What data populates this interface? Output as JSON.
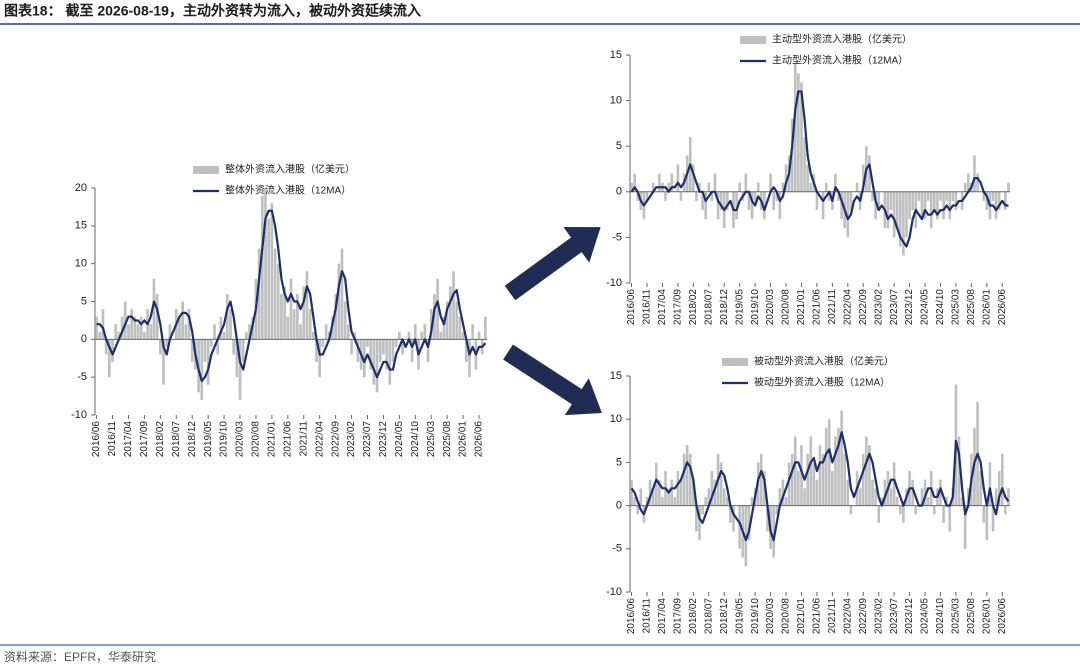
{
  "title": "图表18：  截至 2026-08-19，主动外资转为流入，被动外资延续流入",
  "source": "资料来源：EPFR，华泰研究",
  "chart_data": [
    {
      "type": "bar-line",
      "categories": [
        "2016/06",
        null,
        null,
        null,
        null,
        "2016/11",
        null,
        null,
        null,
        null,
        "2017/04",
        null,
        null,
        null,
        null,
        "2017/09",
        null,
        null,
        null,
        null,
        "2018/02",
        null,
        null,
        null,
        null,
        "2018/07",
        null,
        null,
        null,
        null,
        "2018/12",
        null,
        null,
        null,
        null,
        "2019/05",
        null,
        null,
        null,
        null,
        "2019/10",
        null,
        null,
        null,
        null,
        "2020/03",
        null,
        null,
        null,
        null,
        "2020/08",
        null,
        null,
        null,
        null,
        "2021/01",
        null,
        null,
        null,
        null,
        "2021/06",
        null,
        null,
        null,
        null,
        "2021/11",
        null,
        null,
        null,
        null,
        "2022/04",
        null,
        null,
        null,
        null,
        "2022/09",
        null,
        null,
        null,
        null,
        "2023/02",
        null,
        null,
        null,
        null,
        "2023/07",
        null,
        null,
        null,
        null,
        "2023/12",
        null,
        null,
        null,
        null,
        "2024/05",
        null,
        null,
        null,
        null,
        "2024/10",
        null,
        null,
        null,
        null,
        "2025/03",
        null,
        null,
        null,
        null,
        "2025/08",
        null,
        null,
        null,
        null,
        "2026/01",
        null,
        null,
        null,
        null,
        "2026/06",
        null,
        null
      ],
      "ylim": [
        -10,
        20
      ],
      "yticks": [
        -10,
        -5,
        0,
        5,
        10,
        15,
        20
      ],
      "series": [
        {
          "name": "整体外资流入港股（亿美元）",
          "type": "bar",
          "color": "#bfbfbf",
          "values": [
            3,
            1,
            4,
            -2,
            -5,
            -3,
            2,
            1,
            3,
            5,
            2,
            4,
            3,
            2,
            3,
            1,
            4,
            2,
            8,
            6,
            -2,
            -6,
            -1,
            2,
            0,
            4,
            3,
            5,
            2,
            4,
            -3,
            -4,
            -7,
            -8,
            -3,
            -6,
            -1,
            2,
            -2,
            3,
            1,
            6,
            4,
            -2,
            -5,
            -8,
            -3,
            1,
            2,
            3,
            8,
            12,
            19,
            20,
            16,
            18,
            12,
            10,
            6,
            7,
            3,
            8,
            4,
            6,
            2,
            7,
            9,
            4,
            1,
            -3,
            -5,
            -1,
            2,
            1,
            3,
            6,
            10,
            12,
            5,
            2,
            -2,
            1,
            -3,
            -4,
            -5,
            -1,
            -4,
            -6,
            -7,
            -3,
            -2,
            -4,
            -6,
            -3,
            -1,
            1,
            -2,
            0,
            1,
            -3,
            2,
            -4,
            1,
            2,
            -3,
            4,
            6,
            8,
            1,
            3,
            5,
            7,
            9,
            5,
            3,
            1,
            -3,
            -5,
            2,
            -4,
            1,
            -2,
            3
          ]
        },
        {
          "name": "整体外资流入港股（12MA）",
          "type": "line",
          "color": "#1f2d6b",
          "values": [
            2,
            2,
            1.5,
            0,
            -1,
            -2,
            -1,
            0,
            1,
            2,
            3,
            3,
            2.5,
            2.5,
            2,
            2.5,
            2,
            3,
            5,
            4,
            2,
            -1,
            -2,
            0,
            1,
            2,
            3,
            3.5,
            3.5,
            3,
            1,
            -2,
            -4,
            -5.5,
            -5,
            -4,
            -2,
            -1,
            0,
            1,
            2,
            4,
            5,
            3,
            0,
            -3,
            -4,
            -2,
            0,
            2,
            4,
            8,
            12,
            16,
            17,
            17,
            15,
            12,
            8,
            6,
            5,
            6,
            5,
            5,
            4,
            5,
            7,
            6,
            3,
            0,
            -2,
            -2,
            -1,
            0,
            2,
            4,
            7,
            9,
            8,
            4,
            1,
            0,
            -1,
            -2,
            -3,
            -2,
            -3,
            -4,
            -5,
            -4,
            -3,
            -3,
            -4,
            -4,
            -2,
            -1,
            0,
            -1,
            0,
            -1,
            0,
            -2,
            -1,
            0,
            -1,
            1,
            4,
            5,
            3,
            2,
            4,
            5,
            6,
            6.5,
            4,
            2,
            0,
            -2,
            -1,
            -2,
            -1,
            -1,
            -0.5
          ]
        }
      ]
    },
    {
      "type": "bar-line",
      "categories": [
        "2016/06",
        null,
        null,
        null,
        null,
        "2016/11",
        null,
        null,
        null,
        null,
        "2017/04",
        null,
        null,
        null,
        null,
        "2017/09",
        null,
        null,
        null,
        null,
        "2018/02",
        null,
        null,
        null,
        null,
        "2018/07",
        null,
        null,
        null,
        null,
        "2018/12",
        null,
        null,
        null,
        null,
        "2019/05",
        null,
        null,
        null,
        null,
        "2019/10",
        null,
        null,
        null,
        null,
        "2020/03",
        null,
        null,
        null,
        null,
        "2020/08",
        null,
        null,
        null,
        null,
        "2021/01",
        null,
        null,
        null,
        null,
        "2021/06",
        null,
        null,
        null,
        null,
        "2021/11",
        null,
        null,
        null,
        null,
        "2022/04",
        null,
        null,
        null,
        null,
        "2022/09",
        null,
        null,
        null,
        null,
        "2023/02",
        null,
        null,
        null,
        null,
        "2023/07",
        null,
        null,
        null,
        null,
        "2023/12",
        null,
        null,
        null,
        null,
        "2024/05",
        null,
        null,
        null,
        null,
        "2024/10",
        null,
        null,
        null,
        null,
        "2025/03",
        null,
        null,
        null,
        null,
        "2025/08",
        null,
        null,
        null,
        null,
        "2026/01",
        null,
        null,
        null,
        null,
        "2026/06",
        null,
        null
      ],
      "ylim": [
        -10,
        15
      ],
      "yticks": [
        -10,
        -5,
        0,
        5,
        10,
        15
      ],
      "series": [
        {
          "name": "主动型外资流入港股（亿美元）",
          "type": "bar",
          "color": "#bfbfbf",
          "values": [
            1,
            2,
            -1,
            -2,
            -3,
            -1,
            0,
            1,
            0,
            2,
            1,
            -1,
            1,
            2,
            0,
            3,
            -1,
            2,
            4,
            6,
            3,
            -1,
            1,
            -2,
            -3,
            1,
            -1,
            2,
            -3,
            -2,
            -4,
            -2,
            0,
            -4,
            -3,
            1,
            -1,
            2,
            -2,
            -3,
            -1,
            1,
            -2,
            -3,
            0,
            2,
            -2,
            -1,
            -3,
            1,
            3,
            4,
            8,
            14,
            13,
            12,
            6,
            3,
            1,
            2,
            -2,
            0,
            -3,
            1,
            -1,
            -2,
            2,
            -1,
            -3,
            -4,
            -5,
            -2,
            0,
            1,
            -2,
            3,
            5,
            4,
            -1,
            -3,
            -2,
            0,
            -4,
            -4,
            -2,
            -5,
            -4,
            -6,
            -7,
            -5,
            -3,
            -2,
            -4,
            -1,
            -3,
            -3,
            -1,
            -4,
            -2,
            -3,
            -1,
            -3,
            -1,
            -3,
            -1,
            -2,
            0,
            -2,
            1,
            2,
            1,
            4,
            2,
            0,
            -1,
            -2,
            -3,
            -1,
            -3,
            -2,
            0,
            -2,
            1
          ]
        },
        {
          "name": "主动型外资流入港股（12MA）",
          "type": "line",
          "color": "#1f2d6b",
          "values": [
            0,
            0.5,
            0,
            -1,
            -1.5,
            -1,
            -0.5,
            0,
            0.5,
            0.5,
            0.5,
            0.5,
            0,
            0.5,
            0.5,
            1,
            0.5,
            1,
            2,
            3,
            2,
            1,
            0,
            0,
            -1,
            -0.5,
            0,
            0,
            -1,
            -1.5,
            -2,
            -1.5,
            -1,
            -2,
            -2,
            -1,
            -0.5,
            0,
            0,
            -1,
            -1.5,
            -0.5,
            -1,
            -2,
            -1,
            0,
            0.5,
            0,
            -1,
            -0.5,
            1,
            2,
            5,
            9,
            11,
            11,
            8,
            4,
            2,
            1,
            0,
            -0.5,
            -1,
            -0.5,
            0,
            -1,
            0.5,
            0,
            -1,
            -2,
            -3,
            -2.5,
            -1,
            -0.5,
            -1,
            0.5,
            2.5,
            3,
            1,
            -1,
            -2,
            -1.5,
            -2,
            -3,
            -2.5,
            -3,
            -4,
            -5,
            -5.5,
            -6,
            -5,
            -3,
            -2,
            -2.5,
            -3,
            -2,
            -2.5,
            -2.5,
            -2,
            -2.5,
            -2,
            -2,
            -1.5,
            -2,
            -1.5,
            -1.5,
            -1,
            -1,
            -0.5,
            0,
            0.5,
            1.5,
            1.5,
            1,
            0,
            -0.5,
            -1.5,
            -1.5,
            -2,
            -1.5,
            -1,
            -1.5,
            -1.5
          ]
        }
      ]
    },
    {
      "type": "bar-line",
      "categories": [
        "2016/06",
        null,
        null,
        null,
        null,
        "2016/11",
        null,
        null,
        null,
        null,
        "2017/04",
        null,
        null,
        null,
        null,
        "2017/09",
        null,
        null,
        null,
        null,
        "2018/02",
        null,
        null,
        null,
        null,
        "2018/07",
        null,
        null,
        null,
        null,
        "2018/12",
        null,
        null,
        null,
        null,
        "2019/05",
        null,
        null,
        null,
        null,
        "2019/10",
        null,
        null,
        null,
        null,
        "2020/03",
        null,
        null,
        null,
        null,
        "2020/08",
        null,
        null,
        null,
        null,
        "2021/01",
        null,
        null,
        null,
        null,
        "2021/06",
        null,
        null,
        null,
        null,
        "2021/11",
        null,
        null,
        null,
        null,
        "2022/04",
        null,
        null,
        null,
        null,
        "2022/09",
        null,
        null,
        null,
        null,
        "2023/02",
        null,
        null,
        null,
        null,
        "2023/07",
        null,
        null,
        null,
        null,
        "2023/12",
        null,
        null,
        null,
        null,
        "2024/05",
        null,
        null,
        null,
        null,
        "2024/10",
        null,
        null,
        null,
        null,
        "2025/03",
        null,
        null,
        null,
        null,
        "2025/08",
        null,
        null,
        null,
        null,
        "2026/01",
        null,
        null,
        null,
        null,
        "2026/06",
        null,
        null
      ],
      "ylim": [
        -10,
        15
      ],
      "yticks": [
        -10,
        -5,
        0,
        5,
        10,
        15
      ],
      "series": [
        {
          "name": "被动型外资流入港股（亿美元）",
          "type": "bar",
          "color": "#bfbfbf",
          "values": [
            3,
            1,
            -1,
            2,
            -2,
            1,
            3,
            2,
            5,
            3,
            1,
            4,
            2,
            3,
            1,
            4,
            3,
            6,
            7,
            6,
            3,
            -3,
            -4,
            -1,
            1,
            2,
            4,
            3,
            6,
            5,
            2,
            1,
            -2,
            -3,
            0,
            -5,
            -6,
            -7,
            -4,
            1,
            2,
            5,
            6,
            4,
            -3,
            -5,
            -6,
            -1,
            2,
            3,
            1,
            5,
            6,
            8,
            4,
            7,
            2,
            6,
            8,
            5,
            3,
            7,
            6,
            9,
            10,
            4,
            8,
            9,
            11,
            6,
            3,
            -1,
            0,
            4,
            2,
            6,
            8,
            7,
            3,
            2,
            -2,
            1,
            3,
            4,
            2,
            5,
            1,
            -1,
            -2,
            2,
            4,
            3,
            -1,
            0,
            2,
            3,
            1,
            4,
            -1,
            2,
            3,
            -2,
            1,
            -3,
            2,
            14,
            8,
            1,
            -5,
            2,
            6,
            9,
            12,
            4,
            -2,
            -4,
            5,
            -3,
            2,
            4,
            6,
            -1,
            2
          ]
        },
        {
          "name": "被动型外资流入港股（12MA）",
          "type": "line",
          "color": "#1f2d6b",
          "values": [
            2,
            1.5,
            0.5,
            -0.5,
            -1,
            0,
            1,
            2,
            3,
            2.5,
            2,
            2,
            1.5,
            2,
            2,
            2.5,
            3,
            4,
            5,
            4.5,
            3,
            0,
            -1.5,
            -2,
            -1,
            0,
            1,
            2,
            3,
            4,
            3.5,
            2,
            0,
            -1,
            -1.5,
            -2,
            -3,
            -4,
            -3,
            -1,
            1,
            3,
            4,
            3,
            0,
            -3,
            -4,
            -2,
            0,
            1,
            2,
            3,
            4,
            5,
            5,
            4,
            3,
            4,
            5,
            5.5,
            4,
            5,
            5,
            6,
            6.5,
            5,
            6,
            7,
            8.5,
            7,
            5,
            2,
            1,
            2,
            3,
            4,
            5,
            6,
            5,
            3,
            1,
            0,
            1,
            2,
            3,
            3,
            2,
            1,
            0,
            1,
            2,
            2,
            1,
            0,
            0,
            1,
            2,
            2,
            1,
            1,
            2,
            1,
            0,
            0,
            1,
            7.5,
            6,
            2,
            -1,
            0,
            3,
            5,
            6,
            5,
            2,
            0,
            2,
            0,
            -1,
            1,
            2,
            1,
            0.5
          ]
        }
      ]
    }
  ]
}
